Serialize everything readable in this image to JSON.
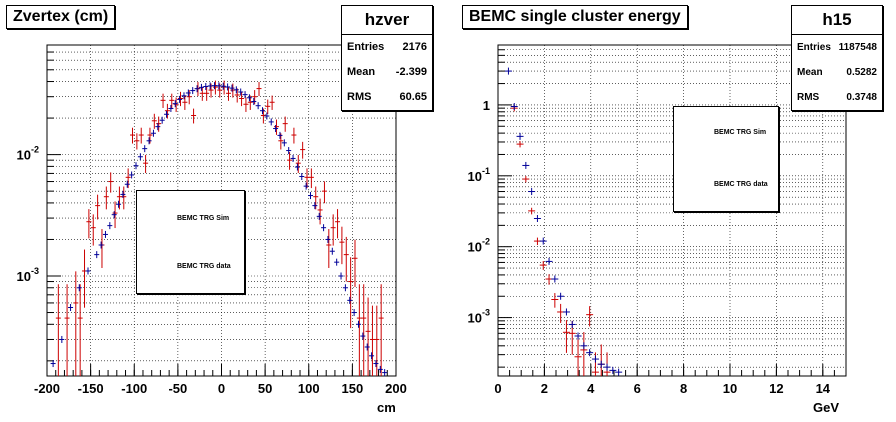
{
  "chart_data": [
    {
      "type": "scatter",
      "title": "Zvertex (cm)",
      "xlabel": "cm",
      "ylabel": "",
      "xlim": [
        -200,
        200
      ],
      "ylim": [
        0.00015,
        0.08
      ],
      "log_y": true,
      "grid": true,
      "legend_position": "center-left",
      "x_ticks": [
        "-200",
        "-150",
        "-100",
        "-50",
        "0",
        "50",
        "100",
        "150",
        "200"
      ],
      "y_ticks": [
        {
          "base": "10",
          "exp": "-3",
          "value": 0.001
        },
        {
          "base": "10",
          "exp": "-2",
          "value": 0.01
        }
      ],
      "stats": {
        "name": "hzver",
        "rows": [
          {
            "label": "Entries",
            "value": "2176"
          },
          {
            "label": "Mean",
            "value": "-2.399"
          },
          {
            "label": "RMS",
            "value": "60.65"
          }
        ]
      },
      "series": [
        {
          "name": "BEMC TRG Sim",
          "color": "#cc0000",
          "x": [
            -187,
            -177,
            -167,
            -162,
            -157,
            -152,
            -147,
            -142,
            -137,
            -132,
            -127,
            -122,
            -117,
            -112,
            -107,
            -102,
            -97,
            -92,
            -87,
            -82,
            -77,
            -72,
            -67,
            -62,
            -57,
            -52,
            -47,
            -42,
            -37,
            -32,
            -27,
            -22,
            -17,
            -12,
            -7,
            -2,
            3,
            8,
            13,
            18,
            23,
            28,
            33,
            38,
            43,
            48,
            53,
            58,
            63,
            68,
            73,
            78,
            83,
            88,
            93,
            98,
            103,
            108,
            113,
            118,
            123,
            128,
            133,
            138,
            143,
            148,
            153,
            158,
            163,
            168,
            173,
            178,
            183
          ],
          "y": [
            0.00045,
            0.00045,
            0.0006,
            0.00045,
            0.0011,
            0.0028,
            0.0025,
            0.0038,
            0.0018,
            0.0045,
            0.006,
            0.0033,
            0.0045,
            0.0045,
            0.0065,
            0.0145,
            0.013,
            0.0145,
            0.0085,
            0.0145,
            0.019,
            0.018,
            0.028,
            0.023,
            0.028,
            0.026,
            0.029,
            0.027,
            0.03,
            0.021,
            0.035,
            0.032,
            0.032,
            0.034,
            0.036,
            0.034,
            0.036,
            0.032,
            0.034,
            0.031,
            0.029,
            0.026,
            0.027,
            0.03,
            0.035,
            0.021,
            0.025,
            0.027,
            0.017,
            0.013,
            0.018,
            0.009,
            0.0145,
            0.0085,
            0.011,
            0.0065,
            0.0065,
            0.0045,
            0.0035,
            0.005,
            0.0018,
            0.0025,
            0.0028,
            0.0019,
            0.0015,
            0.0009,
            0.0014,
            0.00045,
            0.00045,
            0.00035,
            0.0003,
            0.0003,
            0.00045
          ]
        },
        {
          "name": "BEMC TRG data",
          "color": "#000099",
          "x": [
            -193,
            -183,
            -173,
            -163,
            -153,
            -143,
            -138,
            -133,
            -128,
            -123,
            -118,
            -113,
            -108,
            -103,
            -98,
            -93,
            -88,
            -83,
            -78,
            -73,
            -68,
            -63,
            -58,
            -53,
            -48,
            -43,
            -38,
            -33,
            -28,
            -23,
            -18,
            -13,
            -8,
            -3,
            2,
            7,
            12,
            17,
            22,
            27,
            32,
            37,
            42,
            47,
            52,
            57,
            62,
            67,
            72,
            77,
            82,
            87,
            92,
            97,
            102,
            107,
            112,
            117,
            122,
            127,
            132,
            137,
            142,
            147,
            152,
            157,
            162,
            167,
            172,
            177,
            182,
            187
          ],
          "y": [
            0.00019,
            0.0003,
            0.00055,
            0.0008,
            0.0011,
            0.0015,
            0.0018,
            0.0022,
            0.0026,
            0.0032,
            0.0039,
            0.0047,
            0.0057,
            0.0068,
            0.0081,
            0.0096,
            0.0112,
            0.013,
            0.015,
            0.017,
            0.0192,
            0.0215,
            0.024,
            0.0263,
            0.0285,
            0.0305,
            0.0322,
            0.0337,
            0.0349,
            0.0358,
            0.0364,
            0.0368,
            0.037,
            0.0369,
            0.0366,
            0.0361,
            0.0353,
            0.0342,
            0.0328,
            0.0312,
            0.0294,
            0.0274,
            0.0253,
            0.023,
            0.0208,
            0.0186,
            0.0164,
            0.0144,
            0.0125,
            0.0108,
            0.0093,
            0.0079,
            0.0066,
            0.0055,
            0.0046,
            0.0038,
            0.0031,
            0.0025,
            0.002,
            0.0016,
            0.0013,
            0.001,
            0.0008,
            0.00063,
            0.0005,
            0.0004,
            0.00032,
            0.00026,
            0.00022,
            0.00019,
            0.00017,
            0.00016
          ]
        }
      ]
    },
    {
      "type": "scatter",
      "title": "BEMC single cluster energy",
      "xlabel": "GeV",
      "ylabel": "",
      "xlim": [
        0,
        15
      ],
      "ylim": [
        0.00015,
        7
      ],
      "log_y": true,
      "grid": true,
      "legend_position": "center",
      "x_ticks": [
        "0",
        "2",
        "4",
        "6",
        "8",
        "10",
        "12",
        "14"
      ],
      "y_ticks": [
        {
          "base": "10",
          "exp": "-3",
          "value": 0.001
        },
        {
          "base": "10",
          "exp": "-2",
          "value": 0.01
        },
        {
          "base": "10",
          "exp": "-1",
          "value": 0.1
        },
        {
          "base": "1",
          "exp": "",
          "value": 1
        }
      ],
      "stats": {
        "name": "h15",
        "rows": [
          {
            "label": "Entries",
            "value": "1187548"
          },
          {
            "label": "Mean",
            "value": "0.5282"
          },
          {
            "label": "RMS",
            "value": "0.3748"
          }
        ]
      },
      "series": [
        {
          "name": "BEMC TRG Sim",
          "color": "#cc0000",
          "x": [
            0.7,
            0.95,
            1.2,
            1.45,
            1.7,
            1.95,
            2.2,
            2.45,
            2.7,
            2.95,
            3.2,
            3.45,
            3.7,
            3.95,
            4.2,
            4.45,
            4.7
          ],
          "y": [
            0.9,
            0.28,
            0.09,
            0.032,
            0.012,
            0.0055,
            0.0035,
            0.0018,
            0.0012,
            0.00062,
            0.0006,
            0.00028,
            0.00035,
            0.0011,
            0.00017,
            0.00022,
            0.00017
          ]
        },
        {
          "name": "BEMC TRG data",
          "color": "#000099",
          "x": [
            0.45,
            0.7,
            0.95,
            1.2,
            1.45,
            1.7,
            1.95,
            2.2,
            2.45,
            2.7,
            2.95,
            3.2,
            3.45,
            3.7,
            3.95,
            4.2,
            4.45,
            4.7,
            4.95,
            5.2
          ],
          "y": [
            3.0,
            0.95,
            0.36,
            0.14,
            0.06,
            0.025,
            0.012,
            0.0062,
            0.0035,
            0.002,
            0.0012,
            0.0008,
            0.00055,
            0.0004,
            0.00032,
            0.00026,
            0.00022,
            0.0002,
            0.00018,
            0.00017
          ]
        }
      ]
    }
  ]
}
